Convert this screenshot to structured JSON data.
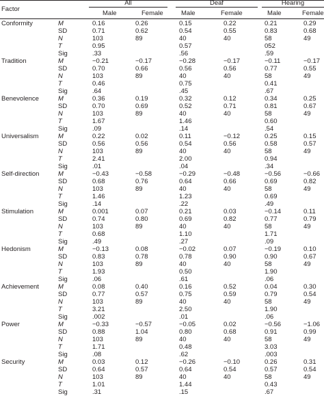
{
  "header": {
    "factor": "Factor",
    "groups": [
      "All",
      "Deaf",
      "Hearing"
    ],
    "subheads": [
      "Male",
      "Female",
      "Male",
      "Female",
      "Male",
      "Female"
    ]
  },
  "rows": [
    {
      "factor": "Conformity",
      "stat": "M",
      "italic": true,
      "values": [
        "0.16",
        "0.26",
        "0.15",
        "0.22",
        "0.21",
        "0.29"
      ]
    },
    {
      "factor": "",
      "stat": "SD",
      "italic": false,
      "values": [
        "0.71",
        "0.62",
        "0.54",
        "0.55",
        "0.83",
        "0.68"
      ]
    },
    {
      "factor": "",
      "stat": "N",
      "italic": true,
      "values": [
        "103",
        "89",
        "40",
        "40",
        "58",
        "49"
      ]
    },
    {
      "factor": "",
      "stat": "T",
      "italic": true,
      "values": [
        "0.95",
        "",
        "0.57",
        "",
        "052",
        ""
      ]
    },
    {
      "factor": "",
      "stat": "Sig",
      "italic": false,
      "values": [
        ".33",
        "",
        ".56",
        "",
        ".59",
        ""
      ]
    },
    {
      "factor": "Tradition",
      "stat": "M",
      "italic": true,
      "values": [
        "−0.21",
        "−0.17",
        "−0.28",
        "−0.17",
        "−0.11",
        "−0.17"
      ]
    },
    {
      "factor": "",
      "stat": "SD",
      "italic": false,
      "values": [
        "0.70",
        "0.66",
        "0.56",
        "0.56",
        "0.77",
        "0.55"
      ]
    },
    {
      "factor": "",
      "stat": "N",
      "italic": true,
      "values": [
        "103",
        "89",
        "40",
        "40",
        "58",
        "49"
      ]
    },
    {
      "factor": "",
      "stat": "T",
      "italic": true,
      "values": [
        "0.46",
        "",
        "0.75",
        "",
        "0.41",
        ""
      ]
    },
    {
      "factor": "",
      "stat": "Sig",
      "italic": false,
      "values": [
        ".64",
        "",
        ".45",
        "",
        ".67",
        ""
      ]
    },
    {
      "factor": "Benevolence",
      "stat": "M",
      "italic": true,
      "values": [
        "0.36",
        "0.19",
        "0.32",
        "0.12",
        "0.34",
        "0.25"
      ]
    },
    {
      "factor": "",
      "stat": "SD",
      "italic": false,
      "values": [
        "0.70",
        "0.69",
        "0.52",
        "0.71",
        "0.81",
        "0.67"
      ]
    },
    {
      "factor": "",
      "stat": "N",
      "italic": true,
      "values": [
        "103",
        "89",
        "40",
        "40",
        "58",
        "49"
      ]
    },
    {
      "factor": "",
      "stat": "T",
      "italic": true,
      "values": [
        "1.67",
        "",
        "1.46",
        "",
        "0.60",
        ""
      ]
    },
    {
      "factor": "",
      "stat": "Sig",
      "italic": false,
      "values": [
        ".09",
        "",
        ".14",
        "",
        ".54",
        ""
      ]
    },
    {
      "factor": "Universalism",
      "stat": "M",
      "italic": true,
      "values": [
        "0.22",
        "0.02",
        "0.11",
        "−0.12",
        "0.25",
        "0.15"
      ]
    },
    {
      "factor": "",
      "stat": "SD",
      "italic": false,
      "values": [
        "0.56",
        "0.56",
        "0.54",
        "0.56",
        "0.58",
        "0.57"
      ]
    },
    {
      "factor": "",
      "stat": "N",
      "italic": true,
      "values": [
        "103",
        "89",
        "40",
        "40",
        "58",
        "49"
      ]
    },
    {
      "factor": "",
      "stat": "T",
      "italic": true,
      "values": [
        "2.41",
        "",
        "2.00",
        "",
        "0.94",
        ""
      ]
    },
    {
      "factor": "",
      "stat": "Sig",
      "italic": false,
      "values": [
        ".01",
        "",
        ".04",
        "",
        ".34",
        ""
      ]
    },
    {
      "factor": "Self-direction",
      "stat": "M",
      "italic": true,
      "values": [
        "−0.43",
        "−0.58",
        "−0.29",
        "−0.48",
        "−0.56",
        "−0.66"
      ]
    },
    {
      "factor": "",
      "stat": "SD",
      "italic": false,
      "values": [
        "0.68",
        "0.76",
        "0.64",
        "0.66",
        "0.69",
        "0.82"
      ]
    },
    {
      "factor": "",
      "stat": "N",
      "italic": true,
      "values": [
        "103",
        "89",
        "40",
        "40",
        "58",
        "49"
      ]
    },
    {
      "factor": "",
      "stat": "T",
      "italic": true,
      "values": [
        "1.46",
        "",
        "1.23",
        "",
        "0.69",
        ""
      ]
    },
    {
      "factor": "",
      "stat": "Sig",
      "italic": false,
      "values": [
        ".14",
        "",
        ".22",
        "",
        ".49",
        ""
      ]
    },
    {
      "factor": "Stimulation",
      "stat": "M",
      "italic": true,
      "values": [
        "0.001",
        "0.07",
        "0.21",
        "0.03",
        "−0.14",
        "0.11"
      ]
    },
    {
      "factor": "",
      "stat": "SD",
      "italic": false,
      "values": [
        "0.74",
        "0.80",
        "0.69",
        "0.82",
        "0.77",
        "0.79"
      ]
    },
    {
      "factor": "",
      "stat": "N",
      "italic": true,
      "values": [
        "103",
        "89",
        "40",
        "40",
        "58",
        "49"
      ]
    },
    {
      "factor": "",
      "stat": "T",
      "italic": true,
      "values": [
        "0.68",
        "",
        "1.10",
        "",
        "1.71",
        ""
      ]
    },
    {
      "factor": "",
      "stat": "Sig",
      "italic": false,
      "values": [
        ".49",
        "",
        ".27",
        "",
        ".09",
        ""
      ]
    },
    {
      "factor": "Hedonism",
      "stat": "M",
      "italic": true,
      "values": [
        "−0.13",
        "0.08",
        "−0.02",
        "0.07",
        "−0.19",
        "0.10"
      ]
    },
    {
      "factor": "",
      "stat": "SD",
      "italic": false,
      "values": [
        "0.83",
        "0.78",
        "0.78",
        "0.90",
        "0.90",
        "0.67"
      ]
    },
    {
      "factor": "",
      "stat": "N",
      "italic": true,
      "values": [
        "103",
        "89",
        "40",
        "40",
        "58",
        "49"
      ]
    },
    {
      "factor": "",
      "stat": "T",
      "italic": true,
      "values": [
        "1.93",
        "",
        "0.50",
        "",
        "1.90",
        ""
      ]
    },
    {
      "factor": "",
      "stat": "Sig",
      "italic": false,
      "values": [
        ".06",
        "",
        ".61",
        "",
        ".06",
        ""
      ]
    },
    {
      "factor": "Achievement",
      "stat": "M",
      "italic": true,
      "values": [
        "0.08",
        "0.40",
        "0.16",
        "0.52",
        "0.04",
        "0.30"
      ]
    },
    {
      "factor": "",
      "stat": "SD",
      "italic": false,
      "values": [
        "0.77",
        "0.57",
        "0.75",
        "0.59",
        "0.79",
        "0.54"
      ]
    },
    {
      "factor": "",
      "stat": "N",
      "italic": true,
      "values": [
        "103",
        "89",
        "40",
        "40",
        "58",
        "49"
      ]
    },
    {
      "factor": "",
      "stat": "T",
      "italic": true,
      "values": [
        "3.21",
        "",
        "2.50",
        "",
        "1.90",
        ""
      ]
    },
    {
      "factor": "",
      "stat": "Sig",
      "italic": false,
      "values": [
        ".002",
        "",
        ".01",
        "",
        ".06",
        ""
      ]
    },
    {
      "factor": "Power",
      "stat": "M",
      "italic": true,
      "values": [
        "−0.33",
        "−0.57",
        "−0.05",
        "0.02",
        "−0.56",
        "−1.06"
      ]
    },
    {
      "factor": "",
      "stat": "SD",
      "italic": false,
      "values": [
        "0.88",
        "1.04",
        "0.80",
        "0.68",
        "0.91",
        "0.99"
      ]
    },
    {
      "factor": "",
      "stat": "N",
      "italic": true,
      "values": [
        "103",
        "89",
        "40",
        "40",
        "58",
        "49"
      ]
    },
    {
      "factor": "",
      "stat": "T",
      "italic": true,
      "values": [
        "1.71",
        "",
        "0.48",
        "",
        "3.03",
        ""
      ]
    },
    {
      "factor": "",
      "stat": "Sig",
      "italic": false,
      "values": [
        ".08",
        "",
        ".62",
        "",
        ".003",
        ""
      ]
    },
    {
      "factor": "Security",
      "stat": "M",
      "italic": true,
      "values": [
        "0.03",
        "0.12",
        "−0.26",
        "−0.10",
        "0.26",
        "0.31"
      ]
    },
    {
      "factor": "",
      "stat": "SD",
      "italic": false,
      "values": [
        "0.64",
        "0.57",
        "0.64",
        "0.54",
        "0.57",
        "0.54"
      ]
    },
    {
      "factor": "",
      "stat": "N",
      "italic": true,
      "values": [
        "103",
        "89",
        "40",
        "40",
        "58",
        "49"
      ]
    },
    {
      "factor": "",
      "stat": "T",
      "italic": true,
      "values": [
        "1.01",
        "",
        "1.44",
        "",
        "0.43",
        ""
      ]
    },
    {
      "factor": "",
      "stat": "Sig",
      "italic": false,
      "values": [
        ".31",
        "",
        ".15",
        "",
        ".67",
        ""
      ]
    }
  ]
}
